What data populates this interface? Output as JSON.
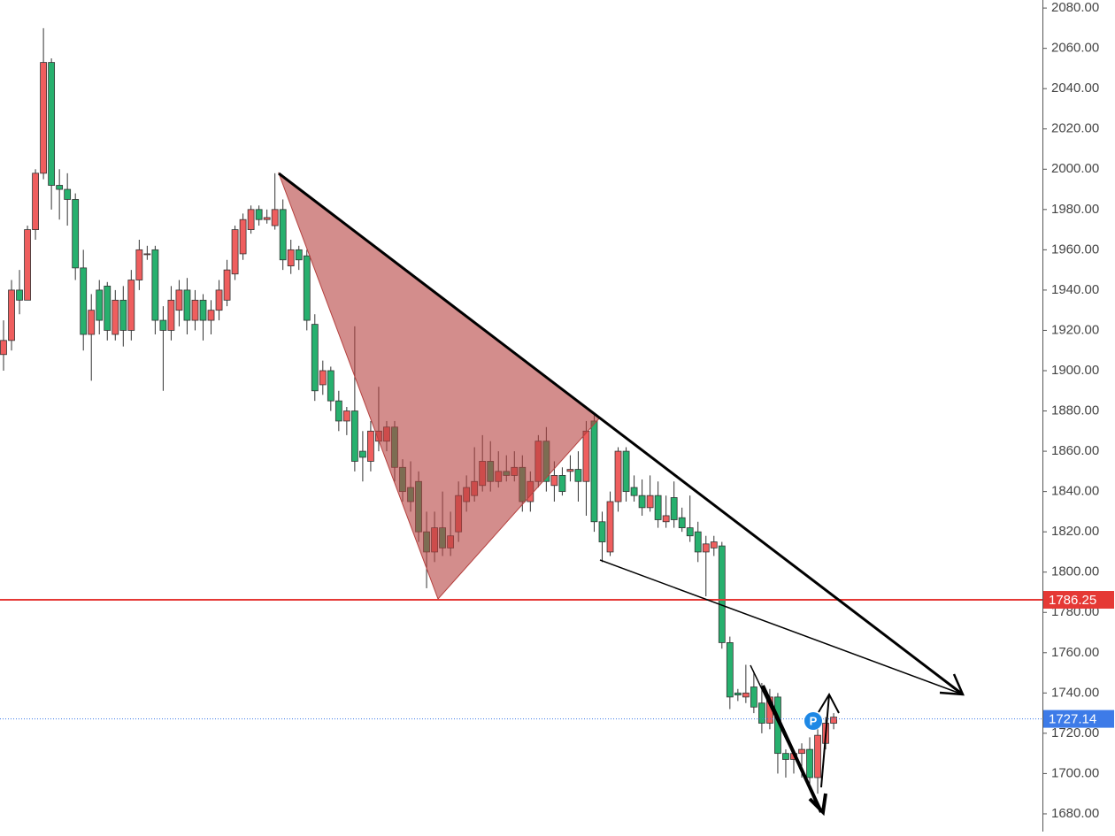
{
  "chart_data": {
    "type": "candlestick",
    "up_color": "#ef5e5e",
    "down_color": "#27b06e",
    "open": [
      1908,
      1915,
      1940,
      1935,
      1970,
      1998,
      2053,
      1992,
      1990,
      1985,
      1951,
      1918,
      1940,
      1942,
      1918,
      1935,
      1920,
      1945,
      1958,
      1960,
      1925,
      1920,
      1930,
      1940,
      1925,
      1935,
      1925,
      1930,
      1935,
      1948,
      1958,
      1970,
      1980,
      1975,
      1972,
      1980,
      1952,
      1960,
      1957,
      1923,
      1893,
      1900,
      1885,
      1875,
      1880,
      1860,
      1855,
      1865,
      1865,
      1872,
      1852,
      1842,
      1845,
      1820,
      1810,
      1822,
      1812,
      1820,
      1835,
      1838,
      1843,
      1855,
      1845,
      1850,
      1848,
      1852,
      1835,
      1845,
      1865,
      1843,
      1848,
      1850,
      1851,
      1845,
      1875,
      1825,
      1810,
      1835,
      1860,
      1842,
      1838,
      1832,
      1838,
      1825,
      1837,
      1827,
      1822,
      1820,
      1810,
      1812,
      1813,
      1765,
      1740,
      1738,
      1743,
      1735,
      1725,
      1738,
      1710,
      1707,
      1710,
      1712,
      1698,
      1715,
      1725
    ],
    "high": [
      1925,
      1945,
      1950,
      1972,
      2000,
      2070,
      2055,
      2000,
      1998,
      1988,
      1960,
      1938,
      1945,
      1944,
      1940,
      1942,
      1950,
      1965,
      1962,
      1962,
      1932,
      1942,
      1945,
      1946,
      1940,
      1938,
      1935,
      1945,
      1955,
      1972,
      1978,
      1982,
      1982,
      1980,
      1998,
      1985,
      1965,
      1962,
      1960,
      1928,
      1905,
      1902,
      1890,
      1882,
      1922,
      1870,
      1875,
      1892,
      1875,
      1875,
      1856,
      1855,
      1850,
      1830,
      1830,
      1840,
      1830,
      1845,
      1848,
      1862,
      1868,
      1865,
      1860,
      1858,
      1860,
      1858,
      1850,
      1868,
      1872,
      1855,
      1852,
      1858,
      1860,
      1875,
      1878,
      1830,
      1840,
      1862,
      1862,
      1848,
      1846,
      1848,
      1845,
      1838,
      1845,
      1832,
      1838,
      1825,
      1818,
      1818,
      1815,
      1768,
      1742,
      1754,
      1750,
      1745,
      1742,
      1740,
      1712,
      1712,
      1715,
      1718,
      1722,
      1728,
      1730
    ],
    "low": [
      1900,
      1910,
      1928,
      1935,
      1965,
      1995,
      1980,
      1975,
      1972,
      1945,
      1910,
      1895,
      1918,
      1915,
      1915,
      1912,
      1915,
      1940,
      1955,
      1918,
      1890,
      1915,
      1922,
      1918,
      1920,
      1915,
      1918,
      1925,
      1932,
      1945,
      1955,
      1968,
      1972,
      1973,
      1970,
      1950,
      1948,
      1950,
      1920,
      1885,
      1888,
      1880,
      1870,
      1868,
      1850,
      1845,
      1850,
      1860,
      1860,
      1845,
      1835,
      1830,
      1815,
      1792,
      1805,
      1808,
      1808,
      1815,
      1830,
      1835,
      1840,
      1840,
      1842,
      1845,
      1845,
      1830,
      1830,
      1842,
      1840,
      1835,
      1838,
      1845,
      1835,
      1828,
      1820,
      1805,
      1808,
      1830,
      1835,
      1835,
      1828,
      1830,
      1822,
      1822,
      1822,
      1820,
      1815,
      1805,
      1788,
      1808,
      1762,
      1732,
      1736,
      1735,
      1730,
      1720,
      1722,
      1700,
      1698,
      1700,
      1698,
      1695,
      1690,
      1712,
      1722
    ],
    "close": [
      1915,
      1940,
      1935,
      1970,
      1998,
      2053,
      1992,
      1990,
      1985,
      1951,
      1918,
      1930,
      1925,
      1920,
      1935,
      1920,
      1945,
      1960,
      1958,
      1925,
      1920,
      1935,
      1940,
      1925,
      1935,
      1925,
      1930,
      1940,
      1950,
      1970,
      1975,
      1980,
      1975,
      1976,
      1980,
      1955,
      1960,
      1955,
      1925,
      1890,
      1900,
      1885,
      1875,
      1880,
      1855,
      1857,
      1870,
      1870,
      1872,
      1852,
      1840,
      1835,
      1820,
      1810,
      1822,
      1812,
      1818,
      1838,
      1842,
      1845,
      1855,
      1845,
      1850,
      1848,
      1852,
      1835,
      1845,
      1865,
      1845,
      1848,
      1840,
      1851,
      1845,
      1870,
      1825,
      1815,
      1835,
      1860,
      1840,
      1838,
      1832,
      1838,
      1826,
      1828,
      1826,
      1822,
      1818,
      1810,
      1814,
      1815,
      1765,
      1738,
      1739,
      1740,
      1733,
      1725,
      1738,
      1710,
      1707,
      1710,
      1712,
      1698,
      1719,
      1725,
      1728
    ],
    "ylim": [
      1671.2,
      2084
    ],
    "yticks": [
      {
        "value": 1680,
        "label": "1680.00"
      },
      {
        "value": 1700,
        "label": "1700.00"
      },
      {
        "value": 1720,
        "label": "1720.00"
      },
      {
        "value": 1740,
        "label": "1740.00"
      },
      {
        "value": 1760,
        "label": "1760.00"
      },
      {
        "value": 1780,
        "label": "1780.00"
      },
      {
        "value": 1800,
        "label": "1800.00"
      },
      {
        "value": 1820,
        "label": "1820.00"
      },
      {
        "value": 1840,
        "label": "1840.00"
      },
      {
        "value": 1860,
        "label": "1860.00"
      },
      {
        "value": 1880,
        "label": "1880.00"
      },
      {
        "value": 1900,
        "label": "1900.00"
      },
      {
        "value": 1920,
        "label": "1920.00"
      },
      {
        "value": 1940,
        "label": "1940.00"
      },
      {
        "value": 1960,
        "label": "1960.00"
      },
      {
        "value": 1980,
        "label": "1980.00"
      },
      {
        "value": 2000,
        "label": "2000.00"
      },
      {
        "value": 2020,
        "label": "2020.00"
      },
      {
        "value": 2040,
        "label": "2040.00"
      },
      {
        "value": 2060,
        "label": "2060.00"
      },
      {
        "value": 2080,
        "label": "2080.00"
      }
    ],
    "price_lines": [
      {
        "value": 1786.25,
        "color": "#e53935",
        "style": "solid"
      },
      {
        "value": 1727.14,
        "color": "#3d7be8",
        "style": "dotted"
      }
    ]
  }
}
